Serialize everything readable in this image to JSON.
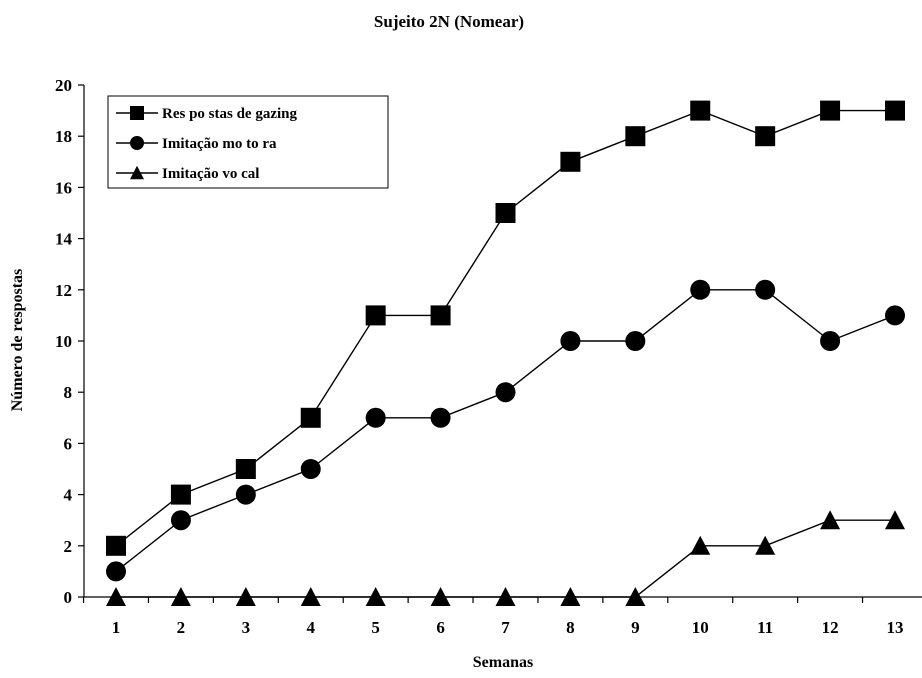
{
  "chart_data": {
    "type": "line",
    "title": "Sujeito 2N (Nomear)",
    "xlabel": "Semanas",
    "ylabel": "Número de respostas",
    "categories": [
      "1",
      "2",
      "3",
      "4",
      "5",
      "6",
      "7",
      "8",
      "9",
      "10",
      "11",
      "12",
      "13"
    ],
    "y_ticks": [
      "0",
      "2",
      "4",
      "6",
      "8",
      "10",
      "12",
      "14",
      "16",
      "18",
      "20"
    ],
    "ylim": [
      0,
      20
    ],
    "grid": false,
    "legend_position": "top-left",
    "series": [
      {
        "name": "Res po stas de gazing",
        "marker": "square",
        "color": "#000000",
        "values": [
          2,
          4,
          5,
          7,
          11,
          11,
          15,
          17,
          18,
          19,
          18,
          19,
          19
        ]
      },
      {
        "name": "Imitação mo to ra",
        "marker": "circle",
        "color": "#000000",
        "values": [
          1,
          3,
          4,
          5,
          7,
          7,
          8,
          10,
          10,
          12,
          12,
          10,
          11
        ]
      },
      {
        "name": "Imitação vo cal",
        "marker": "triangle",
        "color": "#000000",
        "values": [
          0,
          0,
          0,
          0,
          0,
          0,
          0,
          0,
          0,
          2,
          2,
          3,
          3
        ]
      }
    ]
  }
}
